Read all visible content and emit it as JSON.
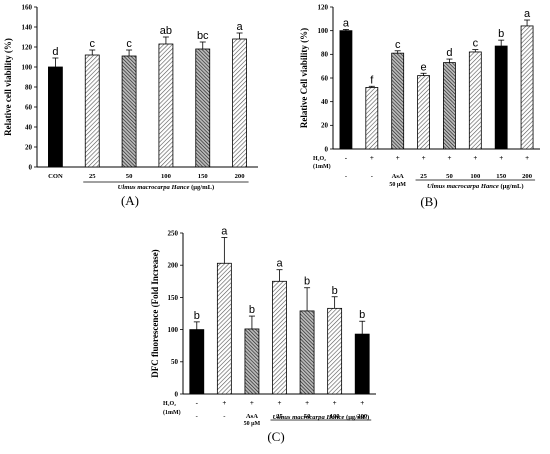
{
  "chart_data": [
    {
      "panel": "(A)",
      "type": "bar",
      "ylabel": "Relative cell viability (%)",
      "ylim": [
        0,
        160
      ],
      "yticks": [
        0,
        20,
        40,
        60,
        80,
        100,
        120,
        140,
        160
      ],
      "categories": [
        "CON",
        "25",
        "50",
        "100",
        "150",
        "200"
      ],
      "values": [
        100,
        112,
        111,
        123,
        118,
        128
      ],
      "errors": [
        9,
        5,
        6,
        7,
        7,
        6
      ],
      "significance": [
        "d",
        "c",
        "c",
        "ab",
        "bc",
        "a"
      ],
      "treatment_caption": {
        "italic": "Ulmus macrocarpa Hance",
        "unit": "(μg/mL)"
      },
      "bar_styles": [
        "solid-black",
        "hatch-light",
        "hatch-dark",
        "hatch-light",
        "hatch-dark",
        "hatch-light"
      ]
    },
    {
      "panel": "(B)",
      "type": "bar",
      "ylabel": "Relative Cell viability (%)",
      "ylim": [
        0,
        120
      ],
      "yticks": [
        0,
        20,
        40,
        60,
        80,
        100,
        120
      ],
      "categories": [
        "-",
        "-",
        "AsA",
        "25",
        "50",
        "100",
        "150",
        "200"
      ],
      "category_sublabels": [
        "",
        "",
        "50 μM",
        "",
        "",
        "",
        "",
        ""
      ],
      "h2o2": [
        "-",
        "+",
        "+",
        "+",
        "+",
        "+",
        "+",
        "+"
      ],
      "row_labels": {
        "h2o2": "H₂O₂",
        "conc": "(1mM)"
      },
      "values": [
        100,
        52,
        81,
        62,
        73,
        82,
        87,
        104
      ],
      "errors": [
        1,
        1,
        2,
        2,
        3,
        2,
        5,
        5
      ],
      "significance": [
        "a",
        "f",
        "c",
        "e",
        "d",
        "c",
        "b",
        "a"
      ],
      "treatment_caption": {
        "italic": "Ulmus macrocarpa Hance",
        "unit": "(μg/mL)"
      },
      "bar_styles": [
        "solid-black",
        "hatch-light",
        "hatch-dark",
        "hatch-light",
        "hatch-dark",
        "hatch-light",
        "solid-black",
        "hatch-light"
      ]
    },
    {
      "panel": "(C)",
      "type": "bar",
      "ylabel": "DFC fluorescence (Fold Increase)",
      "ylim": [
        0,
        250
      ],
      "yticks": [
        0,
        50,
        100,
        150,
        200,
        250
      ],
      "categories": [
        "-",
        "-",
        "AsA",
        "25",
        "50",
        "100",
        "200"
      ],
      "category_sublabels": [
        "",
        "",
        "50 μM",
        "",
        "",
        "",
        ""
      ],
      "h2o2": [
        "-",
        "+",
        "+",
        "+",
        "+",
        "+",
        "+"
      ],
      "row_labels": {
        "h2o2": "H₂O₂",
        "conc": "(1mM)"
      },
      "values": [
        100,
        203,
        101,
        175,
        129,
        133,
        93
      ],
      "errors": [
        12,
        40,
        20,
        18,
        36,
        18,
        20
      ],
      "significance": [
        "b",
        "a",
        "b",
        "a",
        "b",
        "b",
        "b"
      ],
      "treatment_caption": {
        "italic": "Ulmus macrocarpa Hance",
        "unit": "(μg/mL)"
      },
      "bar_styles": [
        "solid-black",
        "hatch-light",
        "hatch-dark",
        "hatch-light",
        "hatch-dark",
        "hatch-light",
        "solid-black"
      ]
    }
  ]
}
